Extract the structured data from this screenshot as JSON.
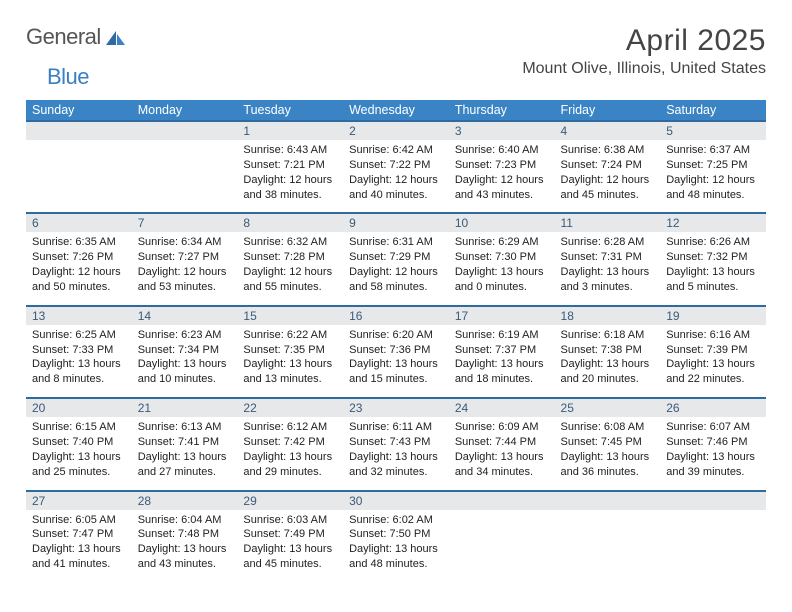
{
  "logo": {
    "word1": "General",
    "word2": "Blue"
  },
  "title": "April 2025",
  "location": "Mount Olive, Illinois, United States",
  "colors": {
    "header_bg": "#3a84c5",
    "daynum_bg": "#e7e8e9",
    "daynum_border": "#2f6aa0",
    "daynum_text": "#3a5a7a",
    "logo_accent": "#3a7fc4"
  },
  "day_names": [
    "Sunday",
    "Monday",
    "Tuesday",
    "Wednesday",
    "Thursday",
    "Friday",
    "Saturday"
  ],
  "weeks": [
    [
      {
        "n": "",
        "lines": []
      },
      {
        "n": "",
        "lines": []
      },
      {
        "n": "1",
        "lines": [
          "Sunrise: 6:43 AM",
          "Sunset: 7:21 PM",
          "Daylight: 12 hours",
          "and 38 minutes."
        ]
      },
      {
        "n": "2",
        "lines": [
          "Sunrise: 6:42 AM",
          "Sunset: 7:22 PM",
          "Daylight: 12 hours",
          "and 40 minutes."
        ]
      },
      {
        "n": "3",
        "lines": [
          "Sunrise: 6:40 AM",
          "Sunset: 7:23 PM",
          "Daylight: 12 hours",
          "and 43 minutes."
        ]
      },
      {
        "n": "4",
        "lines": [
          "Sunrise: 6:38 AM",
          "Sunset: 7:24 PM",
          "Daylight: 12 hours",
          "and 45 minutes."
        ]
      },
      {
        "n": "5",
        "lines": [
          "Sunrise: 6:37 AM",
          "Sunset: 7:25 PM",
          "Daylight: 12 hours",
          "and 48 minutes."
        ]
      }
    ],
    [
      {
        "n": "6",
        "lines": [
          "Sunrise: 6:35 AM",
          "Sunset: 7:26 PM",
          "Daylight: 12 hours",
          "and 50 minutes."
        ]
      },
      {
        "n": "7",
        "lines": [
          "Sunrise: 6:34 AM",
          "Sunset: 7:27 PM",
          "Daylight: 12 hours",
          "and 53 minutes."
        ]
      },
      {
        "n": "8",
        "lines": [
          "Sunrise: 6:32 AM",
          "Sunset: 7:28 PM",
          "Daylight: 12 hours",
          "and 55 minutes."
        ]
      },
      {
        "n": "9",
        "lines": [
          "Sunrise: 6:31 AM",
          "Sunset: 7:29 PM",
          "Daylight: 12 hours",
          "and 58 minutes."
        ]
      },
      {
        "n": "10",
        "lines": [
          "Sunrise: 6:29 AM",
          "Sunset: 7:30 PM",
          "Daylight: 13 hours",
          "and 0 minutes."
        ]
      },
      {
        "n": "11",
        "lines": [
          "Sunrise: 6:28 AM",
          "Sunset: 7:31 PM",
          "Daylight: 13 hours",
          "and 3 minutes."
        ]
      },
      {
        "n": "12",
        "lines": [
          "Sunrise: 6:26 AM",
          "Sunset: 7:32 PM",
          "Daylight: 13 hours",
          "and 5 minutes."
        ]
      }
    ],
    [
      {
        "n": "13",
        "lines": [
          "Sunrise: 6:25 AM",
          "Sunset: 7:33 PM",
          "Daylight: 13 hours",
          "and 8 minutes."
        ]
      },
      {
        "n": "14",
        "lines": [
          "Sunrise: 6:23 AM",
          "Sunset: 7:34 PM",
          "Daylight: 13 hours",
          "and 10 minutes."
        ]
      },
      {
        "n": "15",
        "lines": [
          "Sunrise: 6:22 AM",
          "Sunset: 7:35 PM",
          "Daylight: 13 hours",
          "and 13 minutes."
        ]
      },
      {
        "n": "16",
        "lines": [
          "Sunrise: 6:20 AM",
          "Sunset: 7:36 PM",
          "Daylight: 13 hours",
          "and 15 minutes."
        ]
      },
      {
        "n": "17",
        "lines": [
          "Sunrise: 6:19 AM",
          "Sunset: 7:37 PM",
          "Daylight: 13 hours",
          "and 18 minutes."
        ]
      },
      {
        "n": "18",
        "lines": [
          "Sunrise: 6:18 AM",
          "Sunset: 7:38 PM",
          "Daylight: 13 hours",
          "and 20 minutes."
        ]
      },
      {
        "n": "19",
        "lines": [
          "Sunrise: 6:16 AM",
          "Sunset: 7:39 PM",
          "Daylight: 13 hours",
          "and 22 minutes."
        ]
      }
    ],
    [
      {
        "n": "20",
        "lines": [
          "Sunrise: 6:15 AM",
          "Sunset: 7:40 PM",
          "Daylight: 13 hours",
          "and 25 minutes."
        ]
      },
      {
        "n": "21",
        "lines": [
          "Sunrise: 6:13 AM",
          "Sunset: 7:41 PM",
          "Daylight: 13 hours",
          "and 27 minutes."
        ]
      },
      {
        "n": "22",
        "lines": [
          "Sunrise: 6:12 AM",
          "Sunset: 7:42 PM",
          "Daylight: 13 hours",
          "and 29 minutes."
        ]
      },
      {
        "n": "23",
        "lines": [
          "Sunrise: 6:11 AM",
          "Sunset: 7:43 PM",
          "Daylight: 13 hours",
          "and 32 minutes."
        ]
      },
      {
        "n": "24",
        "lines": [
          "Sunrise: 6:09 AM",
          "Sunset: 7:44 PM",
          "Daylight: 13 hours",
          "and 34 minutes."
        ]
      },
      {
        "n": "25",
        "lines": [
          "Sunrise: 6:08 AM",
          "Sunset: 7:45 PM",
          "Daylight: 13 hours",
          "and 36 minutes."
        ]
      },
      {
        "n": "26",
        "lines": [
          "Sunrise: 6:07 AM",
          "Sunset: 7:46 PM",
          "Daylight: 13 hours",
          "and 39 minutes."
        ]
      }
    ],
    [
      {
        "n": "27",
        "lines": [
          "Sunrise: 6:05 AM",
          "Sunset: 7:47 PM",
          "Daylight: 13 hours",
          "and 41 minutes."
        ]
      },
      {
        "n": "28",
        "lines": [
          "Sunrise: 6:04 AM",
          "Sunset: 7:48 PM",
          "Daylight: 13 hours",
          "and 43 minutes."
        ]
      },
      {
        "n": "29",
        "lines": [
          "Sunrise: 6:03 AM",
          "Sunset: 7:49 PM",
          "Daylight: 13 hours",
          "and 45 minutes."
        ]
      },
      {
        "n": "30",
        "lines": [
          "Sunrise: 6:02 AM",
          "Sunset: 7:50 PM",
          "Daylight: 13 hours",
          "and 48 minutes."
        ]
      },
      {
        "n": "",
        "lines": []
      },
      {
        "n": "",
        "lines": []
      },
      {
        "n": "",
        "lines": []
      }
    ]
  ]
}
